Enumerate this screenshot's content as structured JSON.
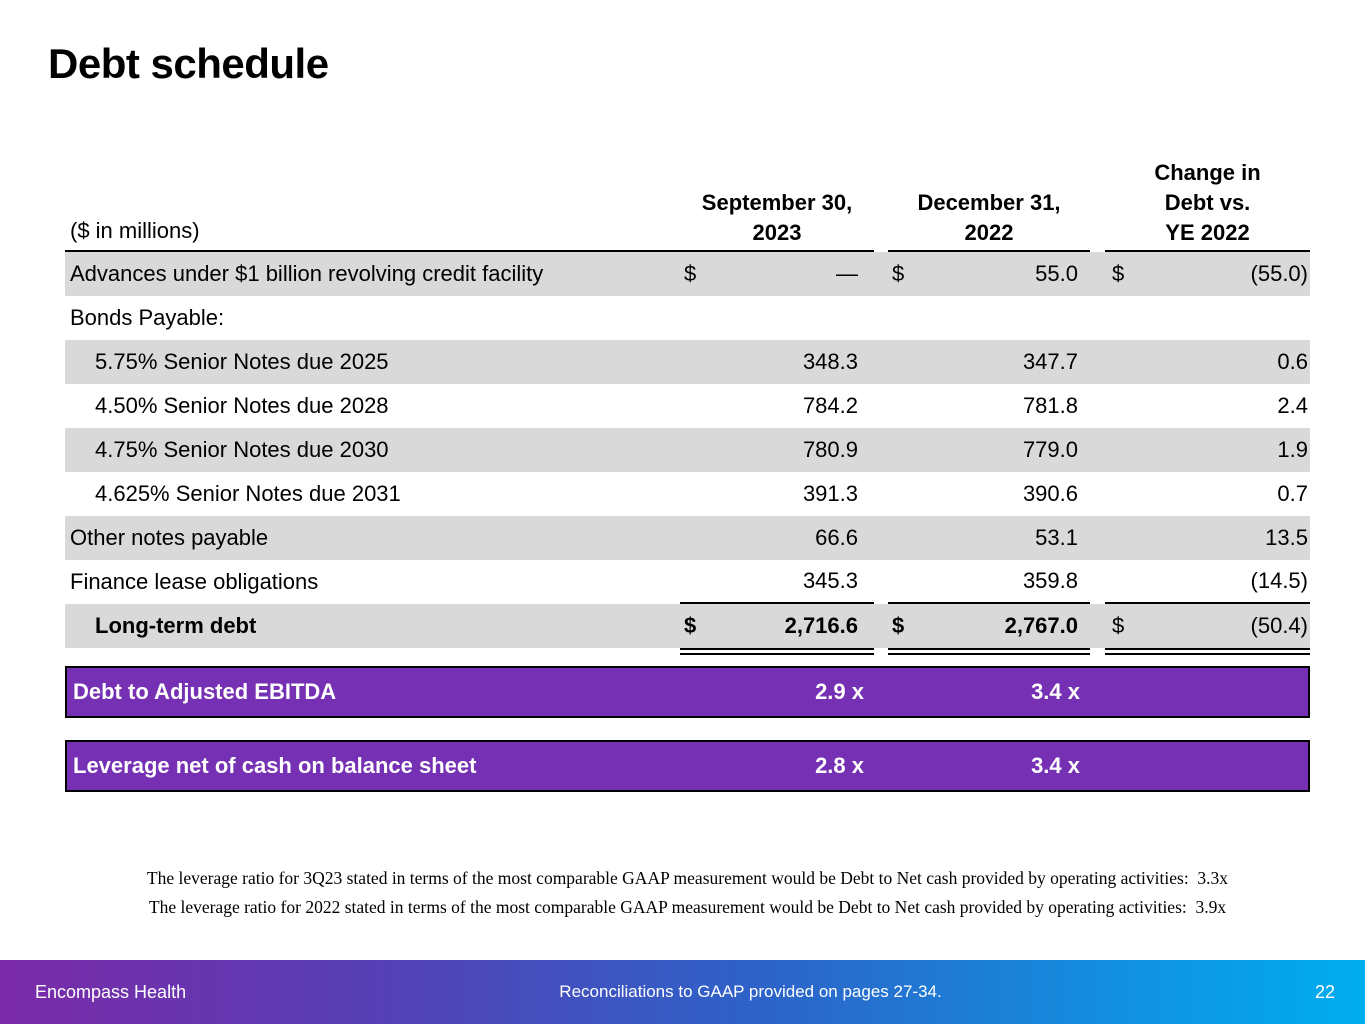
{
  "slide": {
    "title": "Debt schedule"
  },
  "table": {
    "unit_label": "($ in millions)",
    "columns": [
      {
        "line1": "September 30,",
        "line2": "2023"
      },
      {
        "line1": "December 31,",
        "line2": "2022"
      },
      {
        "line1": "Change in",
        "line2": "Debt vs.",
        "line3": "YE 2022"
      }
    ],
    "rows": [
      {
        "label": "Advances under $1 billion revolving credit facility",
        "cur1": "$",
        "val1": "—",
        "cur2": "$",
        "val2": "55.0",
        "cur3": "$",
        "val3": "(55.0)"
      },
      {
        "label": "Bonds Payable:"
      },
      {
        "label": "5.75% Senior Notes due 2025",
        "val1": "348.3",
        "val2": "347.7",
        "val3": "0.6"
      },
      {
        "label": "4.50% Senior Notes due 2028",
        "val1": "784.2",
        "val2": "781.8",
        "val3": "2.4"
      },
      {
        "label": "4.75% Senior Notes due 2030",
        "val1": "780.9",
        "val2": "779.0",
        "val3": "1.9"
      },
      {
        "label": "4.625% Senior Notes due 2031",
        "val1": "391.3",
        "val2": "390.6",
        "val3": "0.7"
      },
      {
        "label": "Other notes payable",
        "val1": "66.6",
        "val2": "53.1",
        "val3": "13.5"
      },
      {
        "label": "Finance lease obligations",
        "val1": "345.3",
        "val2": "359.8",
        "val3": "(14.5)"
      },
      {
        "label": "Long-term debt",
        "cur1": "$",
        "val1": "2,716.6",
        "cur2": "$",
        "val2": "2,767.0",
        "cur3": "$",
        "val3": "(50.4)"
      }
    ]
  },
  "ratio_bars": [
    {
      "label": "Debt to Adjusted EBITDA",
      "sep2023": "2.9 x",
      "dec2022": "3.4 x"
    },
    {
      "label": "Leverage net of cash on balance sheet",
      "sep2023": "2.8 x",
      "dec2022": "3.4 x"
    }
  ],
  "footnotes": [
    "The leverage ratio for 3Q23 stated in terms of the most comparable GAAP measurement would be Debt to Net cash provided by operating activities:  3.3x",
    "The leverage ratio for 2022 stated in terms of the most comparable GAAP measurement would be Debt to Net cash provided by operating activities:  3.9x"
  ],
  "footer": {
    "company": "Encompass Health",
    "center_note": "Reconciliations to GAAP provided on pages 27-34.",
    "page_number": "22"
  },
  "colors": {
    "row_shade": "#D9D9D9",
    "highlight_purple": "#7630B4",
    "footer_gradient_left": "#7B2AA8",
    "footer_gradient_mid": "#2E62C8",
    "footer_gradient_right": "#00AEEF"
  }
}
